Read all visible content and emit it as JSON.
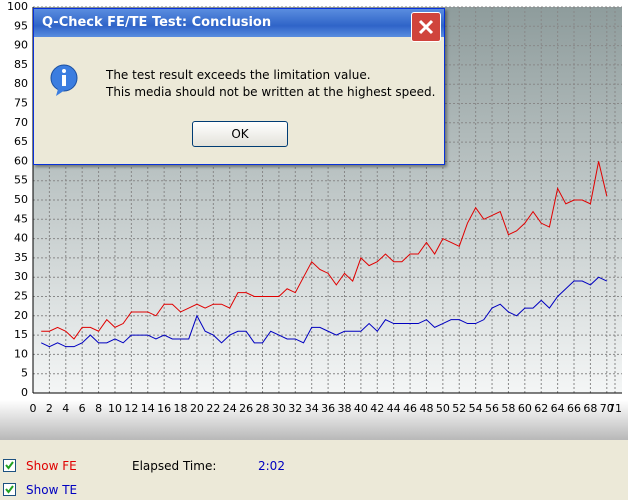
{
  "chart_data": {
    "type": "line",
    "x": [
      1,
      2,
      3,
      4,
      5,
      6,
      7,
      8,
      9,
      10,
      11,
      12,
      13,
      14,
      15,
      16,
      17,
      18,
      19,
      20,
      21,
      22,
      23,
      24,
      25,
      26,
      27,
      28,
      29,
      30,
      31,
      32,
      33,
      34,
      35,
      36,
      37,
      38,
      39,
      40,
      41,
      42,
      43,
      44,
      45,
      46,
      47,
      48,
      49,
      50,
      51,
      52,
      53,
      54,
      55,
      56,
      57,
      58,
      59,
      60,
      61,
      62,
      63,
      64,
      65,
      66,
      67,
      68,
      69,
      70
    ],
    "series": [
      {
        "name": "FE",
        "color": "#e00000",
        "values": [
          16,
          16,
          17,
          16,
          14,
          17,
          17,
          16,
          19,
          17,
          18,
          21,
          21,
          21,
          20,
          23,
          23,
          21,
          22,
          23,
          22,
          23,
          23,
          22,
          26,
          26,
          25,
          25,
          25,
          25,
          27,
          26,
          30,
          34,
          32,
          31,
          28,
          31,
          29,
          35,
          33,
          34,
          36,
          34,
          34,
          36,
          36,
          39,
          36,
          40,
          39,
          38,
          44,
          48,
          45,
          46,
          47,
          41,
          42,
          44,
          47,
          44,
          43,
          53,
          49,
          50,
          50,
          49,
          60,
          51
        ]
      },
      {
        "name": "TE",
        "color": "#0000c0",
        "values": [
          13,
          12,
          13,
          12,
          12,
          13,
          15,
          13,
          13,
          14,
          13,
          15,
          15,
          15,
          14,
          15,
          14,
          14,
          14,
          20,
          16,
          15,
          13,
          15,
          16,
          16,
          13,
          13,
          16,
          15,
          14,
          14,
          13,
          17,
          17,
          16,
          15,
          16,
          16,
          16,
          18,
          16,
          19,
          18,
          18,
          18,
          18,
          19,
          17,
          18,
          19,
          19,
          18,
          18,
          19,
          22,
          23,
          21,
          20,
          22,
          22,
          24,
          22,
          25,
          27,
          29,
          29,
          28,
          30,
          29
        ]
      }
    ],
    "xlim": [
      0,
      71
    ],
    "xticks": [
      0,
      2,
      4,
      6,
      8,
      10,
      12,
      14,
      16,
      18,
      20,
      22,
      24,
      26,
      28,
      30,
      32,
      34,
      36,
      38,
      40,
      42,
      44,
      46,
      48,
      50,
      52,
      54,
      56,
      58,
      60,
      62,
      64,
      66,
      68,
      70,
      71
    ],
    "ylim": [
      0,
      100
    ],
    "yticks": [
      0,
      5,
      10,
      15,
      20,
      25,
      30,
      35,
      40,
      45,
      50,
      55,
      60,
      65,
      70,
      75,
      80,
      85,
      90,
      95,
      100
    ],
    "grid": true
  },
  "dialog": {
    "title": "Q-Check FE/TE Test: Conclusion",
    "message": [
      "The test result exceeds the limitation value.",
      "This media should not be written at the highest speed."
    ],
    "button": "OK"
  },
  "controls": {
    "show_fe": "Show FE",
    "show_te": "Show TE",
    "elapsed_label": "Elapsed Time:",
    "elapsed_value": "2:02"
  }
}
